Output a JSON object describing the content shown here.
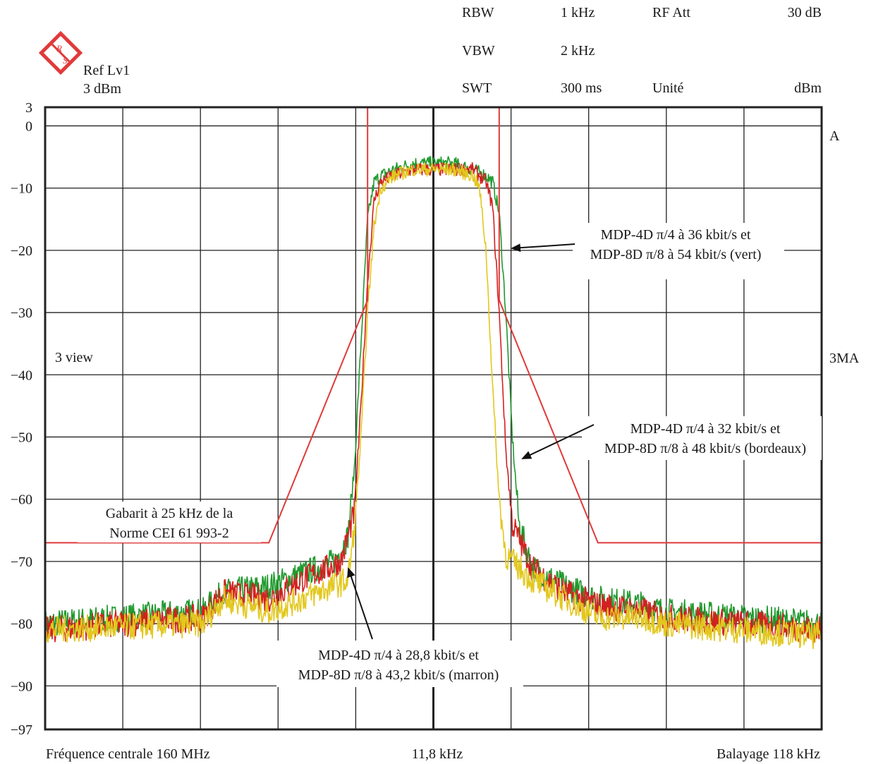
{
  "header": {
    "ref_label": "Ref Lv1",
    "ref_value": "3 dBm",
    "rbw_label": "RBW",
    "rbw_value": "1 kHz",
    "rfatt_label": "RF Att",
    "rfatt_value": "30 dB",
    "vbw_label": "VBW",
    "vbw_value": "2 kHz",
    "swt_label": "SWT",
    "swt_value": "300 ms",
    "unit_label": "Unité",
    "unit_value": "dBm"
  },
  "side_labels": {
    "trace_a": "A",
    "trace_3ma": "3MA",
    "view": "3 view"
  },
  "footer": {
    "left": "Fréquence centrale 160 MHz",
    "center": "11,8 kHz",
    "right": "Balayage 118 kHz"
  },
  "annotations": {
    "green_line1": "MDP-4D π/4 à 36 kbit/s et",
    "green_line2": "MDP-8D π/8 à 54 kbit/s (vert)",
    "red_line1": "MDP-4D π/4 à 32 kbit/s et",
    "red_line2": "MDP-8D  π/8 à 48 kbit/s (bordeaux)",
    "yellow_line1": "MDP-4D π/4 à 28,8 kbit/s et",
    "yellow_line2": "MDP-8D  π/8 à 43,2 kbit/s (marron)",
    "mask_line1": "Gabarit à 25 kHz de la",
    "mask_line2": "Norme CEI 61 993-2"
  },
  "colors": {
    "green": "#1f9a2e",
    "red": "#d42020",
    "yellow": "#e2c81e",
    "mask": "#e03a3a",
    "grid": "#222222"
  },
  "chart_data": {
    "type": "line",
    "title": "",
    "xlabel": "",
    "ylabel": "",
    "xlim": [
      -59,
      59
    ],
    "ylim": [
      -97,
      3
    ],
    "y_ticks": [
      "3",
      "0",
      "−10",
      "−20",
      "−30",
      "−40",
      "−50",
      "−60",
      "−70",
      "−80",
      "−90",
      "−97"
    ],
    "y_tick_values": [
      3,
      0,
      -10,
      -20,
      -30,
      -40,
      -50,
      -60,
      -70,
      -80,
      -90,
      -97
    ],
    "x_grid_divisions": 10,
    "x_unit_per_division_khz": 11.8,
    "grid": true,
    "series": [
      {
        "name": "MDP-4D π/4 à 36 kbit/s et MDP-8D π/8 à 54 kbit/s (vert)",
        "color_key": "green",
        "x": [
          -59,
          -35,
          -32,
          -25,
          -20,
          -15,
          -13,
          -12,
          -11,
          -10,
          -9,
          -8,
          -6,
          -3,
          0,
          3,
          6,
          8,
          9,
          10,
          11,
          12,
          13,
          15,
          20,
          25,
          32,
          35,
          59
        ],
        "y": [
          -80,
          -78,
          -75,
          -74,
          -72,
          -70,
          -66,
          -55,
          -35,
          -15,
          -9,
          -8,
          -7,
          -6,
          -6,
          -6,
          -7,
          -8,
          -9,
          -14,
          -30,
          -50,
          -64,
          -71,
          -74,
          -76,
          -77,
          -78,
          -80
        ]
      },
      {
        "name": "MDP-4D π/4 à 32 kbit/s et MDP-8D π/8 à 48 kbit/s (bordeaux)",
        "color_key": "red",
        "x": [
          -59,
          -35,
          -32,
          -25,
          -20,
          -14,
          -12,
          -11,
          -10,
          -9,
          -8,
          -6,
          -3,
          0,
          3,
          6,
          8,
          9,
          10,
          11,
          12,
          15,
          20,
          25,
          32,
          35,
          59
        ],
        "y": [
          -81,
          -79,
          -75,
          -76,
          -73,
          -70,
          -62,
          -45,
          -25,
          -12,
          -9,
          -8,
          -7,
          -7,
          -7,
          -7,
          -9,
          -13,
          -30,
          -52,
          -64,
          -71,
          -75,
          -77,
          -78,
          -79,
          -81
        ]
      },
      {
        "name": "MDP-4D π/4 à 28,8 kbit/s et MDP-8D π/8 à 43,2 kbit/s (marron)",
        "color_key": "yellow",
        "x": [
          -59,
          -35,
          -32,
          -25,
          -20,
          -13,
          -12,
          -11,
          -10,
          -9,
          -8,
          -6,
          -3,
          0,
          3,
          6,
          7,
          8,
          9,
          10,
          11,
          15,
          20,
          25,
          32,
          35,
          59
        ],
        "y": [
          -81,
          -80,
          -76,
          -78,
          -76,
          -73,
          -65,
          -50,
          -30,
          -16,
          -10,
          -8,
          -7,
          -7,
          -7,
          -8,
          -10,
          -20,
          -42,
          -60,
          -69,
          -73,
          -76,
          -79,
          -79,
          -80,
          -82
        ]
      },
      {
        "name": "Gabarit à 25 kHz de la Norme CEI 61 993-2",
        "color_key": "mask",
        "x": [
          -59,
          -25,
          -10,
          -10,
          10,
          10,
          25,
          59
        ],
        "y": [
          -67,
          -67,
          -28,
          3,
          3,
          -28,
          -67,
          -67
        ]
      }
    ]
  }
}
